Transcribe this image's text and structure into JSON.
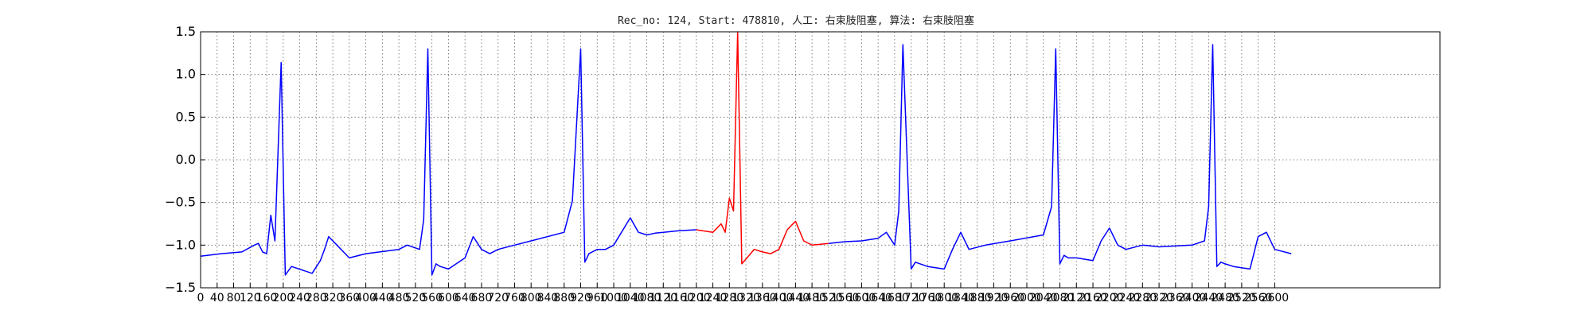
{
  "chart_data": {
    "type": "line",
    "title": "Rec_no: 124, Start: 478810, 人工: 右束肢阻塞, 算法: 右束肢阻塞",
    "xlabel": "",
    "ylabel": "",
    "xlim": [
      0,
      3000
    ],
    "ylim": [
      -1.5,
      1.5
    ],
    "grid": true,
    "yticks": [
      "1.5",
      "1.0",
      "0.5",
      "0.0",
      "−0.5",
      "−1.0",
      "−1.5"
    ],
    "xticks": [
      0,
      40,
      80,
      120,
      160,
      200,
      240,
      280,
      320,
      360,
      400,
      440,
      480,
      520,
      560,
      600,
      640,
      680,
      720,
      760,
      800,
      840,
      880,
      920,
      960,
      1000,
      1040,
      1080,
      1120,
      1160,
      1200,
      1240,
      1280,
      1320,
      1360,
      1400,
      1440,
      1480,
      1520,
      1560,
      1600,
      1640,
      1680,
      1720,
      1760,
      1800,
      1840,
      1880,
      1920,
      1960,
      2000,
      2040,
      2080,
      2120,
      2160,
      2200,
      2240,
      2280,
      2320,
      2360,
      2400,
      2440,
      2480,
      2520,
      2560,
      2600
    ],
    "series": [
      {
        "color": "#0000ff",
        "x": [
          0,
          50,
          100,
          130,
          140,
          150,
          160,
          170,
          180,
          195,
          205,
          220,
          270,
          290,
          300,
          310,
          330,
          360,
          400,
          480,
          500,
          530,
          540,
          550,
          560,
          570,
          580,
          600,
          640,
          660,
          680,
          700,
          720,
          760,
          800,
          880,
          900,
          920,
          930,
          940,
          960,
          970,
          980,
          1000,
          1040,
          1060,
          1080,
          1100,
          1120,
          1160,
          1200
        ],
        "y": [
          -1.13,
          -1.1,
          -1.08,
          -1.0,
          -0.98,
          -1.08,
          -1.1,
          -0.65,
          -0.95,
          1.14,
          -1.35,
          -1.25,
          -1.33,
          -1.18,
          -1.05,
          -0.9,
          -1.0,
          -1.15,
          -1.1,
          -1.05,
          -1.0,
          -1.05,
          -0.7,
          1.3,
          -1.35,
          -1.22,
          -1.25,
          -1.28,
          -1.15,
          -0.9,
          -1.05,
          -1.1,
          -1.05,
          -1.0,
          -0.95,
          -0.85,
          -0.48,
          1.3,
          -1.2,
          -1.1,
          -1.05,
          -1.05,
          -1.05,
          -1.0,
          -0.68,
          -0.85,
          -0.88,
          -0.86,
          -0.85,
          -0.83,
          -0.82
        ]
      },
      {
        "color": "#ff0000",
        "x": [
          1200,
          1240,
          1260,
          1270,
          1280,
          1290,
          1300,
          1310,
          1340,
          1360,
          1380,
          1400,
          1420,
          1440,
          1460,
          1480,
          1520
        ],
        "y": [
          -0.82,
          -0.85,
          -0.75,
          -0.85,
          -0.45,
          -0.6,
          1.5,
          -1.22,
          -1.05,
          -1.08,
          -1.1,
          -1.05,
          -0.82,
          -0.72,
          -0.95,
          -1.0,
          -0.98
        ]
      },
      {
        "color": "#0000ff",
        "x": [
          1520,
          1560,
          1600,
          1640,
          1660,
          1680,
          1690,
          1700,
          1720,
          1730,
          1760,
          1800,
          1820,
          1840,
          1860,
          1900,
          1960,
          2040,
          2060,
          2070,
          2080,
          2090,
          2100,
          2120,
          2160,
          2180,
          2200,
          2220,
          2240,
          2280,
          2320,
          2400,
          2430,
          2440,
          2450,
          2460,
          2470,
          2480,
          2500,
          2540,
          2560,
          2580,
          2600,
          2640
        ],
        "y": [
          -0.98,
          -0.96,
          -0.95,
          -0.92,
          -0.85,
          -1.0,
          -0.6,
          1.35,
          -1.28,
          -1.2,
          -1.25,
          -1.28,
          -1.05,
          -0.85,
          -1.05,
          -1.0,
          -0.95,
          -0.88,
          -0.55,
          1.3,
          -1.22,
          -1.12,
          -1.15,
          -1.15,
          -1.18,
          -0.95,
          -0.8,
          -1.0,
          -1.05,
          -1.0,
          -1.02,
          -1.0,
          -0.95,
          -0.55,
          1.35,
          -1.25,
          -1.2,
          -1.22,
          -1.25,
          -1.28,
          -0.9,
          -0.85,
          -1.05,
          -1.1
        ]
      }
    ]
  }
}
